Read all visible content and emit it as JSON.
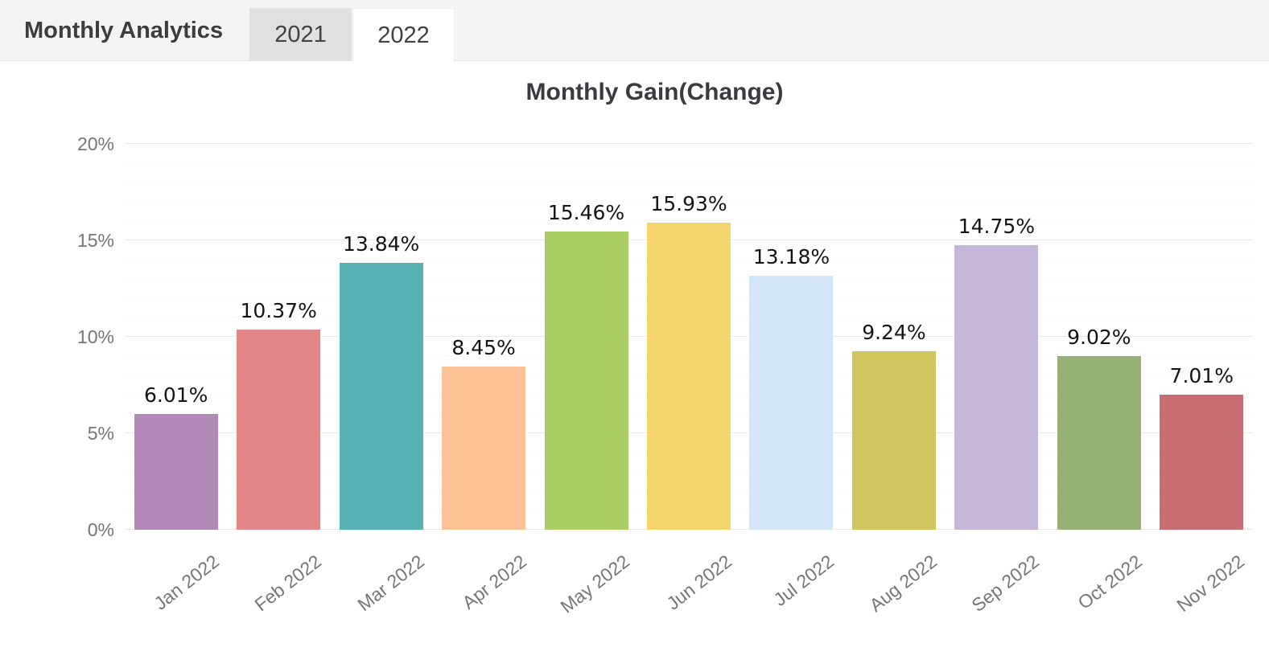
{
  "header": {
    "title": "Monthly Analytics",
    "tabs": [
      {
        "label": "2021",
        "active": false
      },
      {
        "label": "2022",
        "active": true
      }
    ]
  },
  "chart_data": {
    "type": "bar",
    "title": "Monthly Gain(Change)",
    "categories": [
      "Jan 2022",
      "Feb 2022",
      "Mar 2022",
      "Apr 2022",
      "May 2022",
      "Jun 2022",
      "Jul 2022",
      "Aug 2022",
      "Sep 2022",
      "Oct 2022",
      "Nov 2022"
    ],
    "values": [
      6.01,
      10.37,
      13.84,
      8.45,
      15.46,
      15.93,
      13.18,
      9.24,
      14.75,
      9.02,
      7.01
    ],
    "value_labels": [
      "6.01%",
      "10.37%",
      "13.84%",
      "8.45%",
      "15.46%",
      "15.93%",
      "13.18%",
      "9.24%",
      "14.75%",
      "9.02%",
      "7.01%"
    ],
    "bar_colors": [
      "#b189b7",
      "#e18787",
      "#58b2b4",
      "#fcc194",
      "#a9ce63",
      "#f5d56e",
      "#d3e6f8",
      "#d0c55f",
      "#c5b7d9",
      "#95b175",
      "#c86e71"
    ],
    "xlabel": "",
    "ylabel": "",
    "ylim": [
      0,
      20
    ],
    "ytick_labels": [
      "0%",
      "5%",
      "10%",
      "15%",
      "20%"
    ],
    "ytick_values": [
      0,
      5,
      10,
      15,
      20
    ],
    "minor_grid_step": 1,
    "grid": "major solid horizontal, minor dotted horizontal",
    "legend": "none",
    "colors": {
      "major_grid": "#e9e9e9",
      "minor_grid": "#f3f3f3",
      "axis_text": "#767676",
      "value_text": "#141414",
      "header_bg": "#f4f4f4",
      "inactive_tab_bg": "#e1e1e1"
    }
  }
}
